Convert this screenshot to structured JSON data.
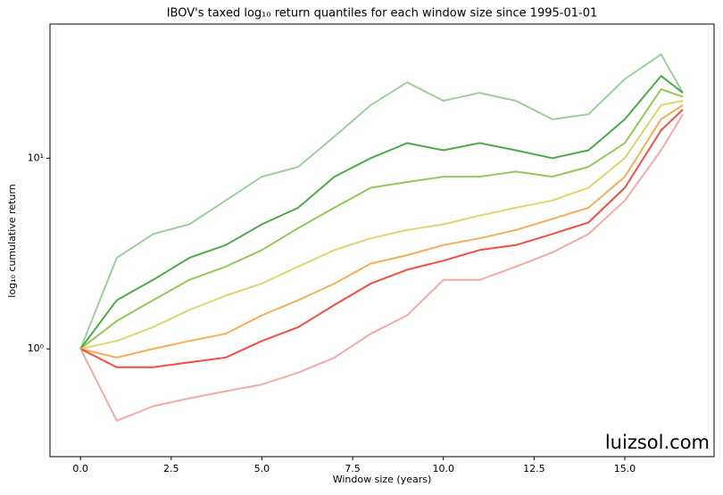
{
  "chart_data": {
    "type": "line",
    "title": "IBOV's taxed log₁₀ return quantiles for each window size since 1995-01-01",
    "xlabel": "Window size (years)",
    "ylabel": "log₁₀ cumulative return",
    "watermark": "luizsol.com",
    "ylog": true,
    "grid": false,
    "xlim": [
      -0.84,
      17.46
    ],
    "ylim": [
      0.272,
      50.5
    ],
    "xticks": [
      {
        "value": 0,
        "label": "0.0"
      },
      {
        "value": 2.5,
        "label": "2.5"
      },
      {
        "value": 5,
        "label": "5.0"
      },
      {
        "value": 7.5,
        "label": "7.5"
      },
      {
        "value": 10,
        "label": "10.0"
      },
      {
        "value": 12.5,
        "label": "12.5"
      },
      {
        "value": 15,
        "label": "15.0"
      }
    ],
    "yticks": [
      {
        "value": 1,
        "label": "10⁰"
      },
      {
        "value": 10,
        "label": "10¹"
      }
    ],
    "x": [
      0,
      1,
      2,
      3,
      4,
      5,
      6,
      7,
      8,
      9,
      10,
      11,
      12,
      13,
      14,
      15,
      16,
      16.6
    ],
    "series": [
      {
        "color": "#8cc88c",
        "values": [
          1,
          3,
          4,
          4.5,
          6,
          8,
          9,
          13,
          19,
          25,
          20,
          22,
          20,
          16,
          17,
          26,
          35,
          22
        ]
      },
      {
        "color": "#2e9a2a",
        "values": [
          1,
          1.8,
          2.3,
          3,
          3.5,
          4.5,
          5.5,
          8,
          10,
          12,
          11,
          12,
          11,
          10,
          11,
          16,
          27,
          22
        ]
      },
      {
        "color": "#7fbf3a",
        "values": [
          1,
          1.4,
          1.8,
          2.3,
          2.7,
          3.3,
          4.3,
          5.5,
          7,
          7.5,
          8,
          8,
          8.5,
          8,
          9,
          12,
          23,
          21
        ]
      },
      {
        "color": "#d9cc55",
        "values": [
          1,
          1.1,
          1.3,
          1.6,
          1.9,
          2.2,
          2.7,
          3.3,
          3.8,
          4.2,
          4.5,
          5,
          5.5,
          6,
          7,
          10,
          19,
          20
        ]
      },
      {
        "color": "#f5a03a",
        "values": [
          1,
          0.9,
          1.0,
          1.1,
          1.2,
          1.5,
          1.8,
          2.2,
          2.8,
          3.1,
          3.5,
          3.8,
          4.2,
          4.8,
          5.5,
          8,
          16,
          19
        ]
      },
      {
        "color": "#f03020",
        "values": [
          1,
          0.8,
          0.8,
          0.85,
          0.9,
          1.1,
          1.3,
          1.7,
          2.2,
          2.6,
          2.9,
          3.3,
          3.5,
          4.0,
          4.6,
          7,
          14,
          18
        ]
      },
      {
        "color": "#f59a9a",
        "values": [
          1,
          0.42,
          0.5,
          0.55,
          0.6,
          0.65,
          0.75,
          0.9,
          1.2,
          1.5,
          2.3,
          2.3,
          2.7,
          3.2,
          4.0,
          6,
          11,
          17
        ]
      }
    ]
  }
}
